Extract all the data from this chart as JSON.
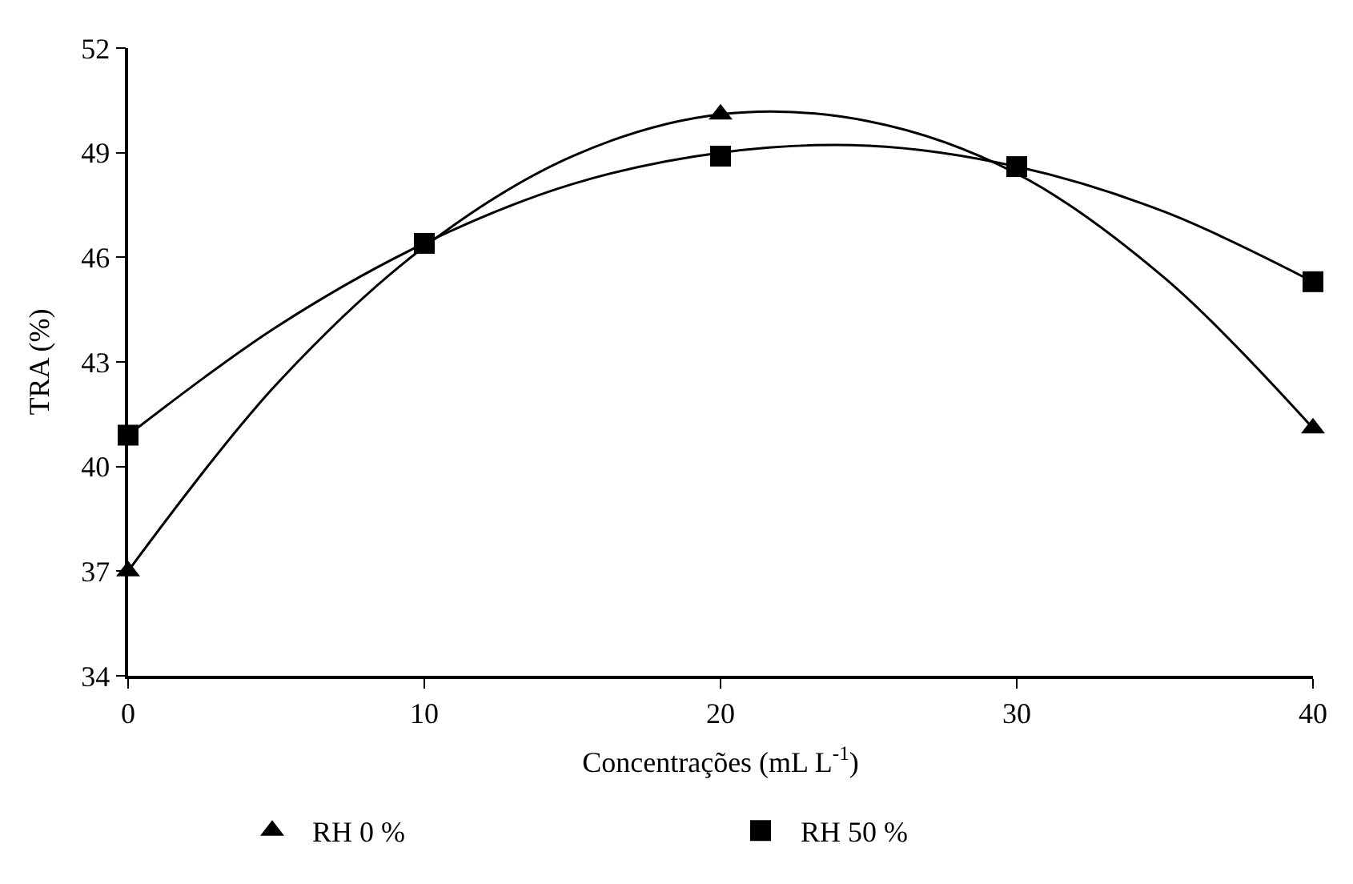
{
  "chart_data": {
    "type": "scatter",
    "xlabel": "Concentrações (mL L$^{-1}$)",
    "ylabel": "TRA (%)",
    "xlim": [
      0,
      40
    ],
    "xticks": [
      0,
      10,
      20,
      30,
      40
    ],
    "ylim": [
      34,
      52
    ],
    "yticks": [
      34,
      37,
      40,
      43,
      46,
      49,
      52
    ],
    "legend": "bottom",
    "series": [
      {
        "name": "RH 0 %",
        "marker": "triangle",
        "color": "#000000",
        "x": [
          0,
          10,
          20,
          30,
          40
        ],
        "values": [
          37.0,
          null,
          50.1,
          null,
          41.1
        ]
      },
      {
        "name": "RH 50 %",
        "marker": "square",
        "color": "#000000",
        "x": [
          0,
          10,
          20,
          30,
          40
        ],
        "values": [
          40.9,
          46.4,
          48.9,
          48.6,
          45.3
        ]
      },
      {
        "type": "line",
        "marker": "none",
        "color": "#000000",
        "x": [
          0,
          5,
          10,
          15,
          20,
          25,
          30,
          35,
          40
        ],
        "values": [
          37.0,
          42.35,
          46.3,
          48.9,
          50.1,
          49.9,
          48.4,
          45.4,
          41.1
        ]
      },
      {
        "type": "line",
        "marker": "none",
        "color": "#000000",
        "x": [
          0,
          5,
          10,
          15,
          20,
          25,
          30,
          35,
          40
        ],
        "values": [
          40.9,
          44.0,
          46.4,
          48.1,
          49.0,
          49.2,
          48.6,
          47.3,
          45.3
        ]
      }
    ]
  }
}
